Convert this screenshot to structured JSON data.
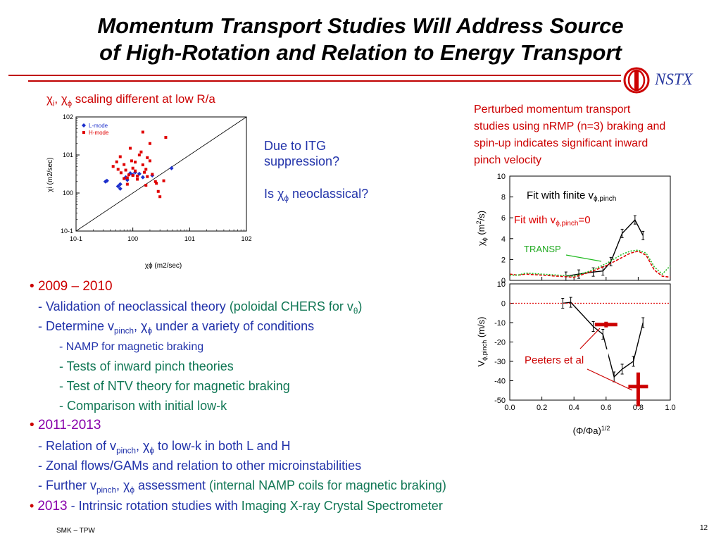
{
  "title": {
    "line1": "Momentum Transport Studies Will Address Source",
    "line2": "of High-Rotation and Relation to Energy Transport"
  },
  "logo": {
    "text": "NSTX",
    "icon": "nstx-logo-icon"
  },
  "scatter_heading": {
    "chi_i": "χ",
    "sub_i": "i",
    "comma": ",",
    "chi_phi": "χ",
    "sub_phi": "ϕ",
    "rest": "scaling different at low R/a"
  },
  "itg_question": {
    "line1": "Due to ITG",
    "line2": "suppression?",
    "line3a": "Is ",
    "chi": "χ",
    "sub": "ϕ",
    "line3b": " neoclassical?"
  },
  "perturbed_text": {
    "line1": "Perturbed momentum transport",
    "line2": "studies using nRMP (n=3) braking and",
    "line3": "spin-up indicates significant inward",
    "line4": "pinch velocity"
  },
  "right_plot": {
    "fit_finite": "Fit with finite v",
    "fit_finite_sub": "ϕ,pinch",
    "fit_zero": "Fit with v",
    "fit_zero_sub": "ϕ,pinch",
    "fit_zero_end": "=0",
    "transp": "TRANSP",
    "peeters": "Peeters et al",
    "top_ylabel_chi": "χ",
    "top_ylabel_sub": "ϕ",
    "top_ylabel_rest": "(m",
    "top_ylabel_sup": "2",
    "top_ylabel_end": "/s)",
    "bot_ylabel_v": "V",
    "bot_ylabel_sub": "ϕ,pinch",
    "bot_ylabel_rest": "(m/s)",
    "xlabel": "(Φ/Φa)",
    "xlabel_sup": "1/2"
  },
  "bullets": {
    "b1_head": "2009 – 2010",
    "b1_l1a": "- Validation of neoclassical theory ",
    "b1_l1b": "(poloidal CHERS for v",
    "b1_l1b_sub": "θ",
    "b1_l1c": ")",
    "b1_l2a": "- Determine v",
    "b1_l2a_sub": "pinch",
    "b1_l2b": ", ",
    "b1_l2chi": "χ",
    "b1_l2chi_sub": "ϕ",
    "b1_l2c": " under a variety of conditions",
    "b1_l3": "- NAMP for magnetic braking",
    "b1_l4": "- Tests of inward pinch theories",
    "b1_l5": "- Test of NTV theory for magnetic braking",
    "b1_l6": "- Comparison with initial low-k",
    "b2_head": "2011-2013",
    "b2_l1a": "- Relation of v",
    "b2_l1a_sub": "pinch",
    "b2_l1b": ", ",
    "b2_l1chi": "χ",
    "b2_l1chi_sub": "ϕ",
    "b2_l1c": " to low-k in both L and H",
    "b2_l2": "- Zonal flows/GAMs and relation to other microinstabilities",
    "b2_l3a": "- Further v",
    "b2_l3a_sub": "pinch",
    "b2_l3b": ", ",
    "b2_l3chi": "χ",
    "b2_l3chi_sub": "ϕ",
    "b2_l3c": " assessment ",
    "b2_l3d": "(internal NAMP coils for magnetic braking)",
    "b3_head": "2013",
    "b3_a": " - Intrinsic rotation studies with ",
    "b3_b": "Imaging X-ray Crystal Spectrometer"
  },
  "footer": {
    "left": "SMK – TPW",
    "page": "12"
  },
  "chart_data": [
    {
      "type": "scatter",
      "title": "",
      "xlabel": "χϕ (m2/sec)",
      "ylabel": "χi (m2/sec)",
      "xscale": "log",
      "yscale": "log",
      "xlim": [
        0.1,
        100
      ],
      "ylim": [
        0.1,
        100
      ],
      "x_ticks": [
        "10-1",
        "100",
        "101",
        "102"
      ],
      "y_ticks": [
        "10-1",
        "100",
        "101",
        "102"
      ],
      "legend": {
        "placement": "top-left",
        "entries": [
          "L-mode",
          "H-mode"
        ]
      },
      "series": [
        {
          "name": "L-mode",
          "color": "#1c2fcc",
          "marker": "diamond",
          "points": [
            [
              0.35,
              2.1
            ],
            [
              0.33,
              2.0
            ],
            [
              0.55,
              1.5
            ],
            [
              0.6,
              1.7
            ],
            [
              0.75,
              2.6
            ],
            [
              0.8,
              2.2
            ],
            [
              0.9,
              3.3
            ],
            [
              1.0,
              3.0
            ],
            [
              1.1,
              3.5
            ],
            [
              1.3,
              3.2
            ],
            [
              1.5,
              2.6
            ],
            [
              2.2,
              2.9
            ],
            [
              4.8,
              4.5
            ],
            [
              0.6,
              1.3
            ]
          ]
        },
        {
          "name": "H-mode",
          "color": "#e00000",
          "marker": "square",
          "points": [
            [
              0.45,
              5.0
            ],
            [
              0.52,
              6.6
            ],
            [
              0.55,
              4.2
            ],
            [
              0.6,
              9.0
            ],
            [
              0.62,
              3.4
            ],
            [
              0.7,
              5.6
            ],
            [
              0.75,
              4.0
            ],
            [
              0.8,
              2.5
            ],
            [
              0.85,
              3.0
            ],
            [
              0.9,
              15.0
            ],
            [
              0.95,
              7.0
            ],
            [
              1.0,
              4.5
            ],
            [
              1.0,
              2.9
            ],
            [
              1.1,
              6.5
            ],
            [
              1.1,
              3.8
            ],
            [
              1.2,
              2.8
            ],
            [
              1.2,
              2.3
            ],
            [
              1.3,
              10.0
            ],
            [
              1.5,
              5.5
            ],
            [
              1.6,
              3.5
            ],
            [
              1.7,
              4.2
            ],
            [
              1.8,
              8.5
            ],
            [
              1.8,
              2.7
            ],
            [
              2.2,
              3.1
            ],
            [
              2.5,
              2.0
            ],
            [
              2.6,
              1.8
            ],
            [
              2.8,
              1.1
            ],
            [
              3.0,
              0.8
            ],
            [
              3.5,
              2.1
            ],
            [
              3.8,
              29.0
            ],
            [
              0.7,
              2.4
            ],
            [
              0.8,
              1.7
            ],
            [
              2.0,
              7.0
            ],
            [
              1.5,
              40.0
            ],
            [
              2.0,
              20.0
            ],
            [
              1.4,
              12.0
            ],
            [
              1.7,
              1.6
            ]
          ]
        }
      ],
      "reference_line": "y = x"
    },
    {
      "type": "line",
      "title": "",
      "xlabel": "(Φ/Φa)1/2",
      "ylabel": "χϕ (m2/s)",
      "xlim": [
        0.0,
        1.0
      ],
      "ylim": [
        0,
        10
      ],
      "y_ticks": [
        0,
        2,
        4,
        6,
        8,
        10
      ],
      "series": [
        {
          "name": "Fit with finite vϕ,pinch",
          "color": "#000000",
          "x": [
            0.35,
            0.43,
            0.52,
            0.58,
            0.63,
            0.7,
            0.78,
            0.83
          ],
          "y": [
            0.4,
            0.6,
            0.8,
            0.9,
            1.8,
            4.5,
            5.8,
            4.3
          ]
        },
        {
          "name": "Fit with vϕ,pinch=0",
          "color": "#e00000",
          "x": [
            0.0,
            0.05,
            0.1,
            0.2,
            0.3,
            0.4,
            0.5,
            0.6,
            0.7,
            0.75,
            0.8,
            0.85,
            0.9,
            0.95,
            1.0
          ],
          "y": [
            0.6,
            0.5,
            0.6,
            0.5,
            0.4,
            0.3,
            0.8,
            1.4,
            2.2,
            2.6,
            2.8,
            2.4,
            1.0,
            0.4,
            0.3
          ]
        },
        {
          "name": "TRANSP",
          "color": "#22bb22",
          "x": [
            0.0,
            0.05,
            0.1,
            0.2,
            0.3,
            0.4,
            0.5,
            0.6,
            0.7,
            0.75,
            0.8,
            0.85,
            0.9,
            0.95,
            1.0
          ],
          "y": [
            0.5,
            0.5,
            0.7,
            0.6,
            0.5,
            0.4,
            0.9,
            1.6,
            2.5,
            2.8,
            2.9,
            2.6,
            1.3,
            0.6,
            1.4
          ]
        }
      ]
    },
    {
      "type": "line",
      "title": "",
      "xlabel": "(Φ/Φa)1/2",
      "ylabel": "Vϕ,pinch (m/s)",
      "xlim": [
        0.0,
        1.0
      ],
      "ylim": [
        -50,
        10
      ],
      "x_ticks": [
        0.0,
        0.2,
        0.4,
        0.6,
        0.8,
        1.0
      ],
      "y_ticks": [
        10,
        0,
        -10,
        -20,
        -30,
        -40,
        -50
      ],
      "series": [
        {
          "name": "Vϕ,pinch fit",
          "color": "#000000",
          "x": [
            0.33,
            0.38,
            0.52,
            0.58,
            0.65,
            0.7,
            0.77,
            0.83
          ],
          "y": [
            0,
            0.5,
            -12,
            -16,
            -38,
            -34,
            -30,
            -10
          ]
        },
        {
          "name": "zero line",
          "color": "#e00000",
          "x": [
            0.0,
            1.0
          ],
          "y": [
            0,
            0
          ]
        },
        {
          "name": "Peeters et al",
          "color": "#cc0000",
          "x": [
            0.6,
            0.8
          ],
          "y": [
            -11,
            -43
          ]
        }
      ]
    }
  ]
}
